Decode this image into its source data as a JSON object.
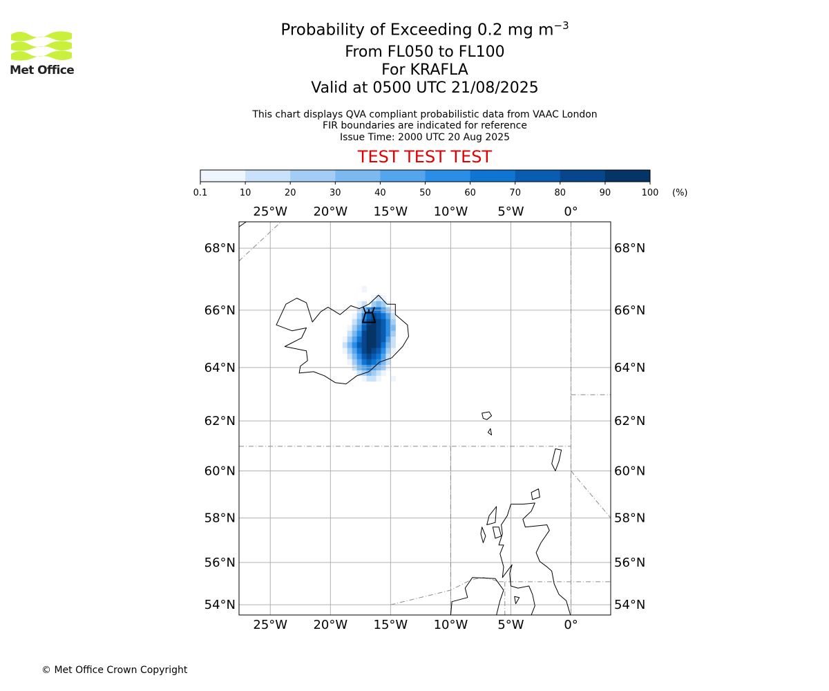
{
  "header": {
    "title_prefix": "Probability of Exceeding 0.2 mg m",
    "title_exponent": "−3",
    "levels": "From FL050 to FL100",
    "volcano": "For KRAFLA",
    "valid": "Valid at 0500 UTC 21/08/2025",
    "notes": [
      "This chart displays QVA compliant probabilistic data from VAAC London",
      "FIR boundaries are indicated for reference",
      "Issue Time: 2000 UTC 20 Aug 2025"
    ],
    "test_banner": "TEST TEST TEST"
  },
  "logo": {
    "text": "Met Office",
    "color": "#c8f03c"
  },
  "colorbar": {
    "ticks": [
      "0.1",
      "10",
      "20",
      "30",
      "40",
      "50",
      "60",
      "70",
      "80",
      "90",
      "100"
    ],
    "unit": "(%)",
    "colors": [
      "#eef5fd",
      "#c9e2f9",
      "#a3cdf5",
      "#7cb9f1",
      "#55a5ec",
      "#2b8ee6",
      "#1074d2",
      "#0a5cb0",
      "#07468c",
      "#053466"
    ]
  },
  "map": {
    "lon_range": [
      -27.6,
      3.3
    ],
    "lat_range": [
      53.5,
      68.8
    ],
    "top_lon_labels": [
      "25°W",
      "20°W",
      "15°W",
      "10°W",
      "5°W",
      "0°"
    ],
    "bottom_lon_labels": [
      "25°W",
      "20°W",
      "15°W",
      "10°W",
      "5°W",
      "0°"
    ],
    "left_lat_labels": [
      "68°N",
      "66°N",
      "64°N",
      "62°N",
      "60°N",
      "58°N",
      "56°N",
      "54°N"
    ],
    "right_lat_labels": [
      "68°N",
      "66°N",
      "64°N",
      "62°N",
      "60°N",
      "58°N",
      "56°N",
      "54°N"
    ],
    "grid_lons": [
      -25,
      -20,
      -15,
      -10,
      -5,
      0
    ],
    "grid_lats": [
      68,
      66,
      64,
      62,
      60,
      58,
      56,
      54
    ],
    "volcano_marker": {
      "lon": -16.8,
      "lat": 65.73,
      "name": "volcano-icon"
    },
    "probability_cells_percent": [
      {
        "lon": -17.2,
        "lat": 66.7,
        "p": 5
      },
      {
        "lon": -16.4,
        "lat": 66.4,
        "p": 5
      },
      {
        "lon": -16.0,
        "lat": 66.4,
        "p": 15
      },
      {
        "lon": -15.6,
        "lat": 66.4,
        "p": 5
      },
      {
        "lon": -17.6,
        "lat": 66.2,
        "p": 5
      },
      {
        "lon": -17.2,
        "lat": 66.2,
        "p": 15
      },
      {
        "lon": -16.4,
        "lat": 66.2,
        "p": 25
      },
      {
        "lon": -16.0,
        "lat": 66.2,
        "p": 35
      },
      {
        "lon": -15.6,
        "lat": 66.2,
        "p": 25
      },
      {
        "lon": -15.2,
        "lat": 66.2,
        "p": 5
      },
      {
        "lon": -17.6,
        "lat": 66.0,
        "p": 15
      },
      {
        "lon": -17.2,
        "lat": 66.0,
        "p": 35
      },
      {
        "lon": -16.8,
        "lat": 66.0,
        "p": 55
      },
      {
        "lon": -16.4,
        "lat": 66.0,
        "p": 65
      },
      {
        "lon": -16.0,
        "lat": 66.0,
        "p": 65
      },
      {
        "lon": -15.6,
        "lat": 66.0,
        "p": 45
      },
      {
        "lon": -15.2,
        "lat": 66.0,
        "p": 25
      },
      {
        "lon": -14.8,
        "lat": 66.0,
        "p": 5
      },
      {
        "lon": -18.0,
        "lat": 65.8,
        "p": 5
      },
      {
        "lon": -17.6,
        "lat": 65.8,
        "p": 25
      },
      {
        "lon": -17.2,
        "lat": 65.8,
        "p": 55
      },
      {
        "lon": -16.8,
        "lat": 65.8,
        "p": 75
      },
      {
        "lon": -16.4,
        "lat": 65.8,
        "p": 85
      },
      {
        "lon": -16.0,
        "lat": 65.8,
        "p": 75
      },
      {
        "lon": -15.6,
        "lat": 65.8,
        "p": 65
      },
      {
        "lon": -15.2,
        "lat": 65.8,
        "p": 45
      },
      {
        "lon": -14.8,
        "lat": 65.8,
        "p": 15
      },
      {
        "lon": -18.0,
        "lat": 65.6,
        "p": 15
      },
      {
        "lon": -17.6,
        "lat": 65.6,
        "p": 35
      },
      {
        "lon": -17.2,
        "lat": 65.6,
        "p": 65
      },
      {
        "lon": -16.8,
        "lat": 65.6,
        "p": 85
      },
      {
        "lon": -16.4,
        "lat": 65.6,
        "p": 95
      },
      {
        "lon": -16.0,
        "lat": 65.6,
        "p": 85
      },
      {
        "lon": -15.6,
        "lat": 65.6,
        "p": 75
      },
      {
        "lon": -15.2,
        "lat": 65.6,
        "p": 55
      },
      {
        "lon": -14.8,
        "lat": 65.6,
        "p": 25
      },
      {
        "lon": -18.4,
        "lat": 65.4,
        "p": 5
      },
      {
        "lon": -18.0,
        "lat": 65.4,
        "p": 25
      },
      {
        "lon": -17.6,
        "lat": 65.4,
        "p": 45
      },
      {
        "lon": -17.2,
        "lat": 65.4,
        "p": 75
      },
      {
        "lon": -16.8,
        "lat": 65.4,
        "p": 95
      },
      {
        "lon": -16.4,
        "lat": 65.4,
        "p": 95
      },
      {
        "lon": -16.0,
        "lat": 65.4,
        "p": 85
      },
      {
        "lon": -15.6,
        "lat": 65.4,
        "p": 75
      },
      {
        "lon": -15.2,
        "lat": 65.4,
        "p": 55
      },
      {
        "lon": -14.8,
        "lat": 65.4,
        "p": 35
      },
      {
        "lon": -18.4,
        "lat": 65.2,
        "p": 15
      },
      {
        "lon": -18.0,
        "lat": 65.2,
        "p": 35
      },
      {
        "lon": -17.6,
        "lat": 65.2,
        "p": 55
      },
      {
        "lon": -17.2,
        "lat": 65.2,
        "p": 85
      },
      {
        "lon": -16.8,
        "lat": 65.2,
        "p": 95
      },
      {
        "lon": -16.4,
        "lat": 65.2,
        "p": 95
      },
      {
        "lon": -16.0,
        "lat": 65.2,
        "p": 85
      },
      {
        "lon": -15.6,
        "lat": 65.2,
        "p": 75
      },
      {
        "lon": -15.2,
        "lat": 65.2,
        "p": 55
      },
      {
        "lon": -14.8,
        "lat": 65.2,
        "p": 25
      },
      {
        "lon": -18.8,
        "lat": 65.0,
        "p": 5
      },
      {
        "lon": -18.4,
        "lat": 65.0,
        "p": 25
      },
      {
        "lon": -18.0,
        "lat": 65.0,
        "p": 45
      },
      {
        "lon": -17.6,
        "lat": 65.0,
        "p": 65
      },
      {
        "lon": -17.2,
        "lat": 65.0,
        "p": 85
      },
      {
        "lon": -16.8,
        "lat": 65.0,
        "p": 95
      },
      {
        "lon": -16.4,
        "lat": 65.0,
        "p": 95
      },
      {
        "lon": -16.0,
        "lat": 65.0,
        "p": 85
      },
      {
        "lon": -15.6,
        "lat": 65.0,
        "p": 75
      },
      {
        "lon": -15.2,
        "lat": 65.0,
        "p": 45
      },
      {
        "lon": -14.8,
        "lat": 65.0,
        "p": 15
      },
      {
        "lon": -18.8,
        "lat": 64.8,
        "p": 15
      },
      {
        "lon": -18.4,
        "lat": 64.8,
        "p": 35
      },
      {
        "lon": -18.0,
        "lat": 64.8,
        "p": 55
      },
      {
        "lon": -17.6,
        "lat": 64.8,
        "p": 75
      },
      {
        "lon": -17.2,
        "lat": 64.8,
        "p": 85
      },
      {
        "lon": -16.8,
        "lat": 64.8,
        "p": 95
      },
      {
        "lon": -16.4,
        "lat": 64.8,
        "p": 95
      },
      {
        "lon": -16.0,
        "lat": 64.8,
        "p": 85
      },
      {
        "lon": -15.6,
        "lat": 64.8,
        "p": 65
      },
      {
        "lon": -15.2,
        "lat": 64.8,
        "p": 35
      },
      {
        "lon": -14.8,
        "lat": 64.8,
        "p": 15
      },
      {
        "lon": -18.8,
        "lat": 64.6,
        "p": 5
      },
      {
        "lon": -18.4,
        "lat": 64.6,
        "p": 25
      },
      {
        "lon": -18.0,
        "lat": 64.6,
        "p": 45
      },
      {
        "lon": -17.6,
        "lat": 64.6,
        "p": 65
      },
      {
        "lon": -17.2,
        "lat": 64.6,
        "p": 85
      },
      {
        "lon": -16.8,
        "lat": 64.6,
        "p": 95
      },
      {
        "lon": -16.4,
        "lat": 64.6,
        "p": 85
      },
      {
        "lon": -16.0,
        "lat": 64.6,
        "p": 75
      },
      {
        "lon": -15.6,
        "lat": 64.6,
        "p": 55
      },
      {
        "lon": -15.2,
        "lat": 64.6,
        "p": 25
      },
      {
        "lon": -14.8,
        "lat": 64.6,
        "p": 5
      },
      {
        "lon": -18.4,
        "lat": 64.4,
        "p": 15
      },
      {
        "lon": -18.0,
        "lat": 64.4,
        "p": 35
      },
      {
        "lon": -17.6,
        "lat": 64.4,
        "p": 55
      },
      {
        "lon": -17.2,
        "lat": 64.4,
        "p": 75
      },
      {
        "lon": -16.8,
        "lat": 64.4,
        "p": 85
      },
      {
        "lon": -16.4,
        "lat": 64.4,
        "p": 75
      },
      {
        "lon": -16.0,
        "lat": 64.4,
        "p": 65
      },
      {
        "lon": -15.6,
        "lat": 64.4,
        "p": 45
      },
      {
        "lon": -15.2,
        "lat": 64.4,
        "p": 15
      },
      {
        "lon": -18.4,
        "lat": 64.2,
        "p": 5
      },
      {
        "lon": -18.0,
        "lat": 64.2,
        "p": 25
      },
      {
        "lon": -17.6,
        "lat": 64.2,
        "p": 45
      },
      {
        "lon": -17.2,
        "lat": 64.2,
        "p": 65
      },
      {
        "lon": -16.8,
        "lat": 64.2,
        "p": 75
      },
      {
        "lon": -16.4,
        "lat": 64.2,
        "p": 65
      },
      {
        "lon": -16.0,
        "lat": 64.2,
        "p": 55
      },
      {
        "lon": -15.6,
        "lat": 64.2,
        "p": 35
      },
      {
        "lon": -15.2,
        "lat": 64.2,
        "p": 15
      },
      {
        "lon": -18.0,
        "lat": 64.0,
        "p": 15
      },
      {
        "lon": -17.6,
        "lat": 64.0,
        "p": 35
      },
      {
        "lon": -17.2,
        "lat": 64.0,
        "p": 45
      },
      {
        "lon": -16.8,
        "lat": 64.0,
        "p": 55
      },
      {
        "lon": -16.4,
        "lat": 64.0,
        "p": 45
      },
      {
        "lon": -16.0,
        "lat": 64.0,
        "p": 35
      },
      {
        "lon": -15.6,
        "lat": 64.0,
        "p": 25
      },
      {
        "lon": -15.2,
        "lat": 64.0,
        "p": 5
      },
      {
        "lon": -17.6,
        "lat": 63.8,
        "p": 15
      },
      {
        "lon": -17.2,
        "lat": 63.8,
        "p": 25
      },
      {
        "lon": -16.8,
        "lat": 63.8,
        "p": 35
      },
      {
        "lon": -16.4,
        "lat": 63.8,
        "p": 25
      },
      {
        "lon": -16.0,
        "lat": 63.8,
        "p": 15
      },
      {
        "lon": -15.6,
        "lat": 63.8,
        "p": 5
      },
      {
        "lon": -17.2,
        "lat": 63.6,
        "p": 5
      },
      {
        "lon": -16.8,
        "lat": 63.6,
        "p": 15
      },
      {
        "lon": -16.4,
        "lat": 63.6,
        "p": 15
      },
      {
        "lon": -16.0,
        "lat": 63.6,
        "p": 5
      },
      {
        "lon": -14.8,
        "lat": 63.6,
        "p": 5
      }
    ],
    "coastlines": {
      "iceland": [
        [
          -24.5,
          65.5
        ],
        [
          -23.7,
          66.2
        ],
        [
          -22.8,
          66.4
        ],
        [
          -22.0,
          66.25
        ],
        [
          -21.5,
          65.6
        ],
        [
          -20.8,
          65.95
        ],
        [
          -20.2,
          66.1
        ],
        [
          -19.2,
          65.85
        ],
        [
          -18.3,
          66.15
        ],
        [
          -17.6,
          66.05
        ],
        [
          -16.8,
          66.2
        ],
        [
          -16.0,
          66.5
        ],
        [
          -15.3,
          66.2
        ],
        [
          -14.6,
          66.2
        ],
        [
          -14.6,
          65.85
        ],
        [
          -13.6,
          65.5
        ],
        [
          -13.5,
          65.1
        ],
        [
          -14.0,
          64.75
        ],
        [
          -14.9,
          64.35
        ],
        [
          -15.9,
          64.2
        ],
        [
          -16.8,
          63.85
        ],
        [
          -17.8,
          63.7
        ],
        [
          -18.7,
          63.4
        ],
        [
          -19.6,
          63.45
        ],
        [
          -20.5,
          63.7
        ],
        [
          -21.4,
          63.85
        ],
        [
          -22.6,
          63.8
        ],
        [
          -22.5,
          64.05
        ],
        [
          -21.9,
          64.25
        ],
        [
          -22.0,
          64.6
        ],
        [
          -23.8,
          64.75
        ],
        [
          -22.4,
          65.05
        ],
        [
          -22.0,
          65.4
        ],
        [
          -23.2,
          65.3
        ],
        [
          -24.5,
          65.5
        ]
      ],
      "greenland": [
        [
          -27.6,
          68.65
        ],
        [
          -27.0,
          68.8
        ],
        [
          -26.6,
          68.8
        ]
      ],
      "faroes": [
        [
          [
            -7.4,
            62.3
          ],
          [
            -6.8,
            62.35
          ],
          [
            -6.6,
            62.2
          ],
          [
            -7.0,
            62.05
          ],
          [
            -7.3,
            62.1
          ],
          [
            -7.4,
            62.3
          ]
        ],
        [
          [
            -6.9,
            61.55
          ],
          [
            -6.7,
            61.7
          ],
          [
            -6.6,
            61.45
          ],
          [
            -6.9,
            61.55
          ]
        ]
      ],
      "shetland": [
        [
          -1.3,
          60.9
        ],
        [
          -0.8,
          60.85
        ],
        [
          -1.0,
          60.4
        ],
        [
          -1.3,
          60.0
        ],
        [
          -1.6,
          60.3
        ],
        [
          -1.3,
          60.9
        ]
      ],
      "scotland": [
        [
          -5.0,
          58.6
        ],
        [
          -4.0,
          58.6
        ],
        [
          -3.0,
          58.65
        ],
        [
          -3.3,
          58.3
        ],
        [
          -4.0,
          57.95
        ],
        [
          -3.8,
          57.6
        ],
        [
          -2.0,
          57.7
        ],
        [
          -1.8,
          57.45
        ],
        [
          -2.5,
          56.9
        ],
        [
          -2.9,
          56.45
        ],
        [
          -2.6,
          56.05
        ],
        [
          -2.0,
          55.8
        ],
        [
          -1.6,
          55.6
        ],
        [
          -1.4,
          55.0
        ],
        [
          -1.0,
          54.5
        ],
        [
          -0.4,
          54.2
        ],
        [
          -0.05,
          53.5
        ],
        [
          -3.3,
          53.5
        ],
        [
          -3.0,
          53.95
        ],
        [
          -3.2,
          54.5
        ],
        [
          -3.5,
          54.9
        ],
        [
          -4.4,
          54.8
        ],
        [
          -5.0,
          54.9
        ],
        [
          -5.1,
          55.5
        ],
        [
          -4.9,
          55.9
        ],
        [
          -5.7,
          55.3
        ],
        [
          -5.6,
          55.8
        ],
        [
          -5.9,
          56.4
        ],
        [
          -5.6,
          56.8
        ],
        [
          -6.0,
          56.8
        ],
        [
          -5.7,
          57.3
        ],
        [
          -5.8,
          57.7
        ],
        [
          -5.3,
          58.1
        ],
        [
          -5.0,
          58.6
        ]
      ],
      "orkney": [
        [
          -3.3,
          59.1
        ],
        [
          -2.7,
          59.25
        ],
        [
          -2.6,
          58.9
        ],
        [
          -3.2,
          58.8
        ],
        [
          -3.3,
          59.1
        ]
      ],
      "lewis": [
        [
          -6.2,
          58.5
        ],
        [
          -6.8,
          58.1
        ],
        [
          -7.0,
          57.7
        ],
        [
          -6.3,
          57.8
        ],
        [
          -6.2,
          58.5
        ]
      ],
      "skye": [
        [
          -6.5,
          57.6
        ],
        [
          -6.0,
          57.6
        ],
        [
          -5.8,
          57.2
        ],
        [
          -6.3,
          57.1
        ],
        [
          -6.5,
          57.6
        ]
      ],
      "uists": [
        [
          -7.4,
          57.6
        ],
        [
          -7.1,
          57.2
        ],
        [
          -7.3,
          56.9
        ],
        [
          -7.5,
          57.3
        ],
        [
          -7.4,
          57.6
        ]
      ],
      "ireland": [
        [
          -8.2,
          55.3
        ],
        [
          -6.3,
          55.25
        ],
        [
          -5.6,
          54.7
        ],
        [
          -5.9,
          54.2
        ],
        [
          -6.2,
          53.5
        ],
        [
          -10.0,
          53.5
        ],
        [
          -9.9,
          54.15
        ],
        [
          -8.6,
          54.35
        ],
        [
          -8.8,
          54.8
        ],
        [
          -8.2,
          55.3
        ]
      ],
      "isle_of_man": [
        [
          -4.7,
          54.4
        ],
        [
          -4.3,
          54.35
        ],
        [
          -4.6,
          54.05
        ],
        [
          -4.7,
          54.4
        ]
      ]
    },
    "fir_lines": [
      [
        [
          -27.6,
          67.6
        ],
        [
          -23.5,
          69.0
        ]
      ],
      [
        [
          -27.6,
          61.0
        ],
        [
          0.0,
          61.0
        ]
      ],
      [
        [
          0.0,
          68.8
        ],
        [
          0.0,
          53.5
        ]
      ],
      [
        [
          0.0,
          63.0
        ],
        [
          3.3,
          63.0
        ]
      ],
      [
        [
          0.0,
          60.0
        ],
        [
          3.3,
          58.0
        ]
      ],
      [
        [
          -10.0,
          61.0
        ],
        [
          -10.0,
          53.5
        ]
      ],
      [
        [
          -15.0,
          54.0
        ],
        [
          -10.0,
          54.7
        ],
        [
          -8.3,
          55.2
        ],
        [
          -7.3,
          55.3
        ],
        [
          -6.5,
          55.2
        ],
        [
          -6.0,
          55.1
        ]
      ],
      [
        [
          -6.0,
          55.1
        ],
        [
          3.3,
          55.1
        ]
      ],
      [
        [
          -5.5,
          55.1
        ],
        [
          -5.5,
          53.5
        ]
      ]
    ]
  },
  "footer": {
    "copyright": "© Met Office Crown Copyright"
  }
}
